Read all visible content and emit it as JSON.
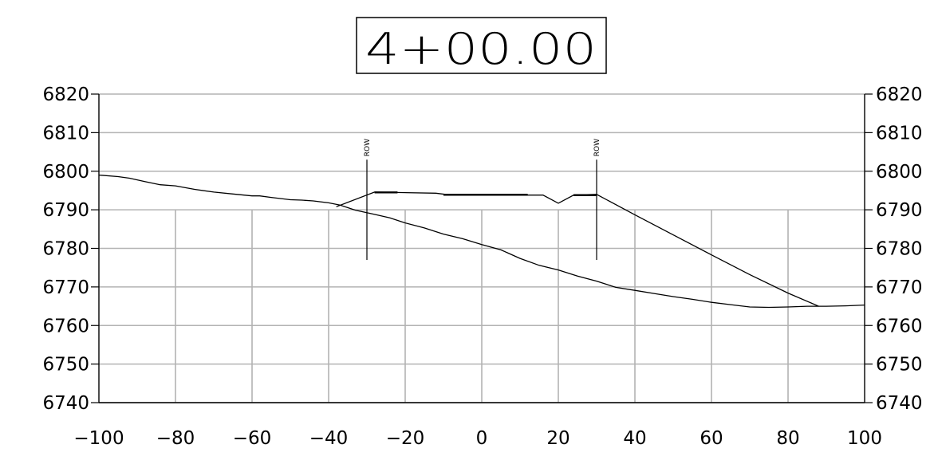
{
  "chart_data": {
    "type": "line",
    "title": "4+00.00",
    "xlabel": "",
    "ylabel": "",
    "xlim": [
      -100,
      100
    ],
    "ylim": [
      6740,
      6820
    ],
    "x_ticks": [
      "−100",
      "−80",
      "−60",
      "−40",
      "−20",
      "0",
      "20",
      "40",
      "60",
      "80",
      "100"
    ],
    "x_tick_values": [
      -100,
      -80,
      -60,
      -40,
      -20,
      0,
      20,
      40,
      60,
      80,
      100
    ],
    "y_ticks": [
      "6820",
      "6810",
      "6800",
      "6790",
      "6780",
      "6770",
      "6760",
      "6750",
      "6740"
    ],
    "y_tick_values": [
      6820,
      6810,
      6800,
      6790,
      6780,
      6770,
      6760,
      6750,
      6740
    ],
    "grid": true,
    "series": [
      {
        "id": "existing-ground",
        "points": [
          [
            -100,
            6799
          ],
          [
            -95,
            6798.6
          ],
          [
            -92,
            6798.2
          ],
          [
            -88,
            6797.3
          ],
          [
            -84,
            6796.5
          ],
          [
            -80,
            6796.2
          ],
          [
            -75,
            6795.3
          ],
          [
            -70,
            6794.6
          ],
          [
            -65,
            6794.1
          ],
          [
            -60,
            6793.6
          ],
          [
            -58,
            6793.6
          ],
          [
            -55,
            6793.2
          ],
          [
            -50,
            6792.6
          ],
          [
            -47,
            6792.5
          ],
          [
            -44,
            6792.3
          ],
          [
            -40,
            6791.8
          ],
          [
            -37,
            6791.2
          ],
          [
            -33,
            6789.9
          ],
          [
            -28,
            6788.8
          ],
          [
            -24,
            6787.9
          ],
          [
            -20,
            6786.6
          ],
          [
            -15,
            6785.3
          ],
          [
            -10,
            6783.7
          ],
          [
            -5,
            6782.5
          ],
          [
            0,
            6781
          ],
          [
            5,
            6779.6
          ],
          [
            10,
            6777.4
          ],
          [
            15,
            6775.6
          ],
          [
            20,
            6774.4
          ],
          [
            25,
            6772.8
          ],
          [
            30,
            6771.5
          ],
          [
            35,
            6769.9
          ],
          [
            40,
            6769.1
          ],
          [
            45,
            6768.3
          ],
          [
            50,
            6767.5
          ],
          [
            55,
            6766.8
          ],
          [
            60,
            6766
          ],
          [
            65,
            6765.4
          ],
          [
            70,
            6764.8
          ],
          [
            75,
            6764.7
          ],
          [
            80,
            6764.8
          ],
          [
            85,
            6765
          ],
          [
            90,
            6765
          ],
          [
            95,
            6765.1
          ],
          [
            100,
            6765.3
          ]
        ]
      },
      {
        "id": "proposed-section",
        "points": [
          [
            -38,
            6790.8
          ],
          [
            -28,
            6794.6
          ],
          [
            -12,
            6794.3
          ],
          [
            -8,
            6793.8
          ],
          [
            0,
            6794
          ],
          [
            8,
            6793.8
          ],
          [
            16,
            6793.8
          ],
          [
            20,
            6791.7
          ],
          [
            24,
            6793.8
          ],
          [
            30,
            6794
          ],
          [
            40,
            6788.7
          ],
          [
            50,
            6783.5
          ],
          [
            60,
            6778.3
          ],
          [
            70,
            6773.2
          ],
          [
            80,
            6768.4
          ],
          [
            88,
            6765
          ]
        ]
      }
    ],
    "annotations": [
      {
        "text": "ROW",
        "x": -30,
        "y_top": 6803,
        "y_bottom": 6777
      },
      {
        "text": "ROW",
        "x": 30,
        "y_top": 6803,
        "y_bottom": 6777
      }
    ]
  }
}
